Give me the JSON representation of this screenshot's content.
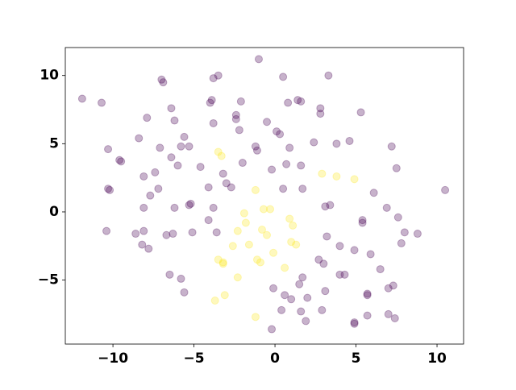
{
  "chart_data": {
    "type": "scatter",
    "xlim": [
      -12.94,
      11.64
    ],
    "ylim": [
      -9.69,
      12.05
    ],
    "xticks": [
      {
        "value": -10,
        "label": "−10"
      },
      {
        "value": -5,
        "label": "−5"
      },
      0,
      5,
      10
    ],
    "yticks": [
      {
        "value": -5,
        "label": "−5"
      },
      0,
      5,
      10
    ],
    "opacity": 0.3,
    "series": [
      {
        "color": "#440154",
        "x": [
          -11.9,
          -10.7,
          -1.0,
          -7.0,
          -6.9,
          -3.8,
          -3.5,
          0.5,
          3.3,
          10.5,
          -3.9,
          -4.0,
          -2.1,
          0.8,
          1.4,
          1.6,
          2.8,
          2.8,
          5.3,
          -6.4,
          -7.9,
          -6.2,
          -3.8,
          -2.4,
          -2.4,
          -0.5,
          -2.2,
          0.1,
          0.3,
          -10.3,
          -8.4,
          -5.6,
          -5.8,
          -5.3,
          -7.1,
          -1.2,
          -1.1,
          0.9,
          2.4,
          3.8,
          4.6,
          7.2,
          -9.6,
          -9.5,
          -6.4,
          -6.0,
          -4.6,
          -2.0,
          -0.2,
          0.7,
          1.6,
          7.5,
          -8.1,
          -7.4,
          -3.2,
          -3.0,
          -2.7,
          -4.1,
          -10.3,
          -10.2,
          -7.2,
          -7.7,
          -5.2,
          -5.3,
          0.5,
          1.7,
          3.4,
          3.1,
          6.1,
          6.9,
          -8.1,
          -6.2,
          -3.8,
          -4.1,
          7.6,
          5.4,
          5.4,
          -10.4,
          -8.6,
          -8.1,
          -6.7,
          -6.3,
          -5.1,
          -3.6,
          3.2,
          8.0,
          8.8,
          -8.2,
          -7.8,
          4.0,
          4.9,
          7.8,
          5.9,
          2.7,
          3.0,
          6.5,
          4.0,
          4.3,
          -6.5,
          -5.8,
          1.7,
          1.5,
          7.3,
          7.0,
          -0.1,
          -5.6,
          3.1,
          5.7,
          5.7,
          0.6,
          1.0,
          2.0,
          0.4,
          1.6,
          2.9,
          5.7,
          7.0,
          7.4,
          1.9,
          4.9,
          4.9,
          -0.2
        ],
        "y": [
          8.3,
          8.0,
          11.2,
          9.7,
          9.5,
          9.8,
          10.0,
          9.9,
          10.0,
          1.6,
          8.2,
          8.0,
          8.1,
          8.0,
          8.2,
          8.1,
          7.6,
          7.2,
          7.3,
          7.6,
          6.9,
          6.7,
          6.5,
          6.8,
          7.1,
          6.6,
          6.0,
          5.9,
          5.7,
          4.6,
          5.4,
          5.5,
          4.8,
          4.8,
          4.7,
          4.8,
          4.5,
          4.7,
          5.1,
          5.0,
          5.2,
          4.8,
          3.8,
          3.7,
          4.0,
          3.4,
          3.3,
          3.6,
          3.1,
          3.5,
          3.4,
          3.2,
          2.6,
          2.9,
          2.8,
          2.1,
          1.8,
          1.8,
          1.7,
          1.6,
          1.7,
          1.2,
          0.6,
          0.5,
          1.7,
          1.7,
          0.5,
          0.4,
          1.4,
          0.3,
          0.3,
          0.3,
          0.3,
          -0.6,
          -0.4,
          -0.6,
          -0.8,
          -1.4,
          -1.6,
          -1.4,
          -1.7,
          -1.6,
          -1.5,
          -1.5,
          -1.8,
          -1.5,
          -1.6,
          -2.4,
          -2.7,
          -2.5,
          -2.8,
          -2.3,
          -3.1,
          -3.5,
          -3.8,
          -4.2,
          -4.6,
          -4.6,
          -4.6,
          -4.9,
          -4.8,
          -5.3,
          -5.4,
          -5.6,
          -5.6,
          -5.9,
          -5.8,
          -6.0,
          -6.1,
          -6.1,
          -6.4,
          -6.3,
          -7.2,
          -7.3,
          -7.2,
          -7.6,
          -7.5,
          -7.8,
          -8.0,
          -8.1,
          -8.2,
          -8.6
        ]
      },
      {
        "color": "#fde725",
        "x": [
          -3.5,
          -3.3,
          2.9,
          3.8,
          4.9,
          -1.2,
          -0.7,
          -0.3,
          -1.9,
          0.9,
          -1.8,
          1.1,
          -2.3,
          -0.8,
          -0.5,
          1.0,
          1.3,
          -2.6,
          -1.6,
          -0.1,
          -1.1,
          -0.9,
          -3.5,
          -3.2,
          -3.2,
          0.6,
          -2.3,
          -3.1,
          -3.7,
          -1.2
        ],
        "y": [
          4.4,
          4.1,
          2.8,
          2.6,
          2.4,
          1.6,
          0.2,
          0.2,
          -0.1,
          -0.5,
          -0.8,
          -1.0,
          -1.4,
          -1.3,
          -1.7,
          -2.2,
          -2.4,
          -2.5,
          -2.4,
          -3.0,
          -3.5,
          -3.7,
          -3.5,
          -3.8,
          -3.7,
          -4.1,
          -4.8,
          -6.1,
          -6.5,
          -7.7
        ]
      }
    ]
  }
}
